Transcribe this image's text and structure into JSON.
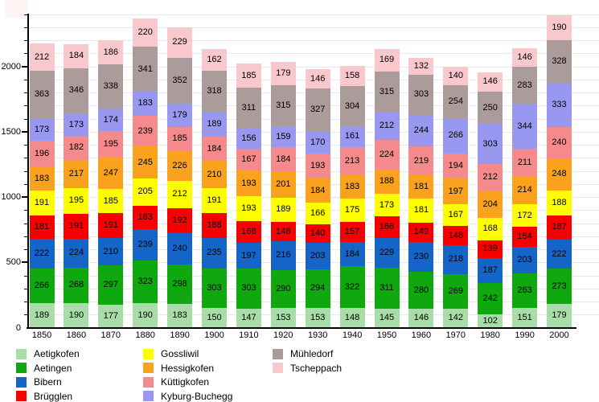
{
  "chart_data": {
    "type": "bar",
    "stacked": true,
    "title": "",
    "xlabel": "",
    "ylabel": "",
    "categories": [
      "1850",
      "1860",
      "1870",
      "1880",
      "1890",
      "1900",
      "1910",
      "1920",
      "1930",
      "1940",
      "1950",
      "1960",
      "1970",
      "1980",
      "1990",
      "2000"
    ],
    "yticks": [
      0,
      500,
      1000,
      1500,
      2000
    ],
    "ylim": [
      0,
      2400
    ],
    "grid": {
      "horizontal_step": 100,
      "color": "#e8e8e8"
    },
    "legend_position": "bottom",
    "series": [
      {
        "name": "Aetigkofen",
        "color": "#A8DCA8",
        "values": [
          189,
          190,
          177,
          190,
          183,
          150,
          147,
          153,
          153,
          148,
          145,
          146,
          142,
          102,
          151,
          179
        ]
      },
      {
        "name": "Aetingen",
        "color": "#0FA80F",
        "values": [
          266,
          268,
          297,
          323,
          298,
          303,
          303,
          290,
          294,
          322,
          311,
          280,
          269,
          242,
          263,
          273
        ]
      },
      {
        "name": "Bibern",
        "color": "#1565C8",
        "values": [
          222,
          224,
          210,
          239,
          240,
          235,
          197,
          216,
          203,
          184,
          229,
          230,
          218,
          187,
          203,
          222
        ]
      },
      {
        "name": "Brügglen",
        "color": "#F70000",
        "values": [
          181,
          191,
          191,
          183,
          192,
          188,
          168,
          148,
          140,
          157,
          166,
          149,
          148,
          139,
          154,
          187
        ]
      },
      {
        "name": "Gossliwil",
        "color": "#FDFD00",
        "values": [
          191,
          195,
          185,
          205,
          212,
          191,
          193,
          189,
          166,
          175,
          173,
          181,
          167,
          168,
          172,
          188
        ]
      },
      {
        "name": "Hessigkofen",
        "color": "#FAA21E",
        "values": [
          183,
          217,
          247,
          245,
          226,
          210,
          193,
          201,
          184,
          183,
          188,
          181,
          197,
          204,
          214,
          248
        ]
      },
      {
        "name": "Küttigkofen",
        "color": "#F48A8C",
        "values": [
          196,
          182,
          195,
          239,
          185,
          184,
          167,
          184,
          193,
          213,
          224,
          219,
          194,
          212,
          211,
          240
        ]
      },
      {
        "name": "Kyburg-Buchegg",
        "color": "#9898F0",
        "values": [
          173,
          173,
          174,
          183,
          179,
          189,
          156,
          159,
          170,
          161,
          212,
          244,
          266,
          303,
          344,
          333
        ]
      },
      {
        "name": "Mühledorf",
        "color": "#AB9C9B",
        "values": [
          363,
          346,
          338,
          341,
          352,
          318,
          311,
          315,
          327,
          304,
          315,
          303,
          254,
          250,
          283,
          328
        ]
      },
      {
        "name": "Tscheppach",
        "color": "#F9C8CC",
        "values": [
          212,
          184,
          186,
          220,
          229,
          162,
          185,
          179,
          146,
          158,
          169,
          132,
          140,
          146,
          146,
          190
        ]
      }
    ]
  },
  "legend": {
    "columns": [
      {
        "items": [
          "Aetigkofen",
          "Aetingen",
          "Bibern",
          "Brügglen"
        ]
      },
      {
        "items": [
          "Gossliwil",
          "Hessigkofen",
          "Küttigkofen",
          "Kyburg-Buchegg"
        ]
      },
      {
        "items": [
          "Mühledorf",
          "Tscheppach"
        ]
      }
    ]
  }
}
